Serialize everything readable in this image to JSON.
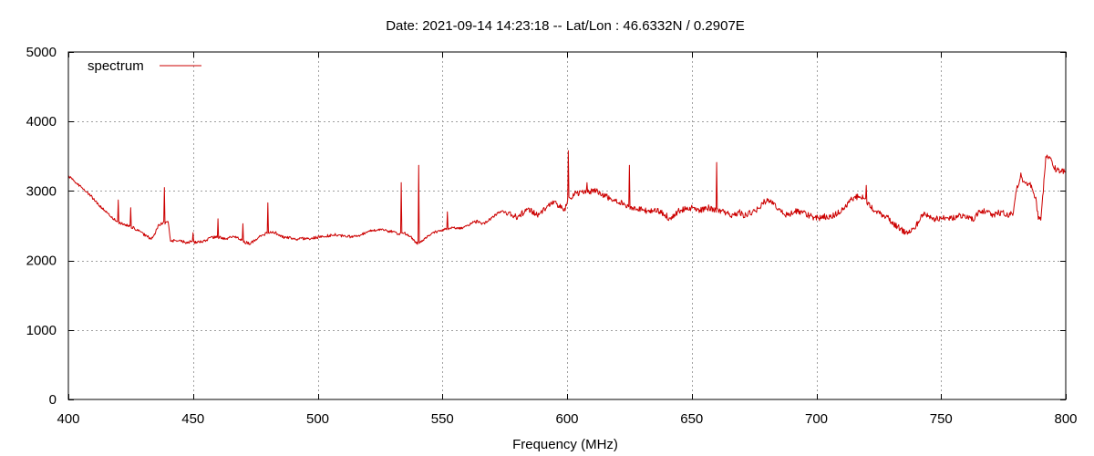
{
  "chart_data": {
    "type": "line",
    "title": "Date: 2021-09-14 14:23:18  --  Lat/Lon : 46.6332N / 0.2907E",
    "xlabel": "Frequency (MHz)",
    "ylabel": "",
    "xlim": [
      400,
      800
    ],
    "ylim": [
      0,
      5000
    ],
    "xticks": [
      400,
      450,
      500,
      550,
      600,
      650,
      700,
      750,
      800
    ],
    "yticks": [
      0,
      1000,
      2000,
      3000,
      4000,
      5000
    ],
    "grid": true,
    "legend_position": "top-left",
    "series": [
      {
        "name": "spectrum",
        "color": "#cc0000",
        "points": [
          [
            400,
            3220
          ],
          [
            403,
            3120
          ],
          [
            406,
            3030
          ],
          [
            409,
            2930
          ],
          [
            412,
            2810
          ],
          [
            415,
            2700
          ],
          [
            418,
            2600
          ],
          [
            420,
            2550
          ],
          [
            422,
            2520
          ],
          [
            424,
            2500
          ],
          [
            426,
            2470
          ],
          [
            428,
            2430
          ],
          [
            430,
            2380
          ],
          [
            432,
            2340
          ],
          [
            433,
            2300
          ],
          [
            434,
            2330
          ],
          [
            436,
            2500
          ],
          [
            437,
            2520
          ],
          [
            438,
            2540
          ],
          [
            439,
            2540
          ],
          [
            440,
            2560
          ],
          [
            441,
            2270
          ],
          [
            443,
            2290
          ],
          [
            445,
            2280
          ],
          [
            447,
            2260
          ],
          [
            449,
            2270
          ],
          [
            451,
            2260
          ],
          [
            453,
            2270
          ],
          [
            455,
            2290
          ],
          [
            457,
            2320
          ],
          [
            459,
            2340
          ],
          [
            461,
            2330
          ],
          [
            463,
            2310
          ],
          [
            465,
            2340
          ],
          [
            467,
            2340
          ],
          [
            469,
            2300
          ],
          [
            471,
            2260
          ],
          [
            473,
            2240
          ],
          [
            475,
            2300
          ],
          [
            477,
            2360
          ],
          [
            479,
            2380
          ],
          [
            481,
            2410
          ],
          [
            483,
            2400
          ],
          [
            485,
            2350
          ],
          [
            487,
            2330
          ],
          [
            489,
            2330
          ],
          [
            491,
            2300
          ],
          [
            493,
            2310
          ],
          [
            495,
            2320
          ],
          [
            497,
            2310
          ],
          [
            499,
            2330
          ],
          [
            501,
            2340
          ],
          [
            503,
            2350
          ],
          [
            505,
            2360
          ],
          [
            507,
            2370
          ],
          [
            509,
            2350
          ],
          [
            511,
            2360
          ],
          [
            513,
            2340
          ],
          [
            515,
            2350
          ],
          [
            517,
            2360
          ],
          [
            519,
            2400
          ],
          [
            521,
            2420
          ],
          [
            523,
            2440
          ],
          [
            525,
            2450
          ],
          [
            527,
            2430
          ],
          [
            529,
            2420
          ],
          [
            531,
            2420
          ],
          [
            532,
            2380
          ],
          [
            534,
            2400
          ],
          [
            536,
            2370
          ],
          [
            537,
            2350
          ],
          [
            539,
            2270
          ],
          [
            540,
            2250
          ],
          [
            542,
            2290
          ],
          [
            544,
            2350
          ],
          [
            546,
            2390
          ],
          [
            548,
            2420
          ],
          [
            550,
            2440
          ],
          [
            552,
            2450
          ],
          [
            554,
            2480
          ],
          [
            556,
            2470
          ],
          [
            558,
            2460
          ],
          [
            560,
            2500
          ],
          [
            562,
            2540
          ],
          [
            564,
            2560
          ],
          [
            566,
            2520
          ],
          [
            568,
            2560
          ],
          [
            570,
            2620
          ],
          [
            572,
            2680
          ],
          [
            574,
            2710
          ],
          [
            576,
            2690
          ],
          [
            578,
            2650
          ],
          [
            580,
            2620
          ],
          [
            582,
            2680
          ],
          [
            584,
            2720
          ],
          [
            586,
            2710
          ],
          [
            588,
            2660
          ],
          [
            590,
            2700
          ],
          [
            592,
            2780
          ],
          [
            594,
            2830
          ],
          [
            596,
            2810
          ],
          [
            598,
            2740
          ],
          [
            599,
            2720
          ],
          [
            601,
            2900
          ],
          [
            603,
            2960
          ],
          [
            605,
            2960
          ],
          [
            607,
            2980
          ],
          [
            609,
            2990
          ],
          [
            611,
            3000
          ],
          [
            613,
            2980
          ],
          [
            615,
            2930
          ],
          [
            617,
            2900
          ],
          [
            619,
            2870
          ],
          [
            621,
            2840
          ],
          [
            623,
            2800
          ],
          [
            625,
            2780
          ],
          [
            627,
            2760
          ],
          [
            629,
            2740
          ],
          [
            631,
            2720
          ],
          [
            633,
            2700
          ],
          [
            635,
            2720
          ],
          [
            637,
            2700
          ],
          [
            639,
            2680
          ],
          [
            641,
            2600
          ],
          [
            643,
            2640
          ],
          [
            645,
            2720
          ],
          [
            647,
            2740
          ],
          [
            649,
            2760
          ],
          [
            651,
            2750
          ],
          [
            653,
            2720
          ],
          [
            655,
            2740
          ],
          [
            657,
            2760
          ],
          [
            659,
            2720
          ],
          [
            661,
            2720
          ],
          [
            663,
            2690
          ],
          [
            665,
            2660
          ],
          [
            667,
            2650
          ],
          [
            669,
            2700
          ],
          [
            671,
            2650
          ],
          [
            673,
            2680
          ],
          [
            675,
            2700
          ],
          [
            677,
            2760
          ],
          [
            679,
            2840
          ],
          [
            681,
            2870
          ],
          [
            683,
            2800
          ],
          [
            685,
            2750
          ],
          [
            687,
            2680
          ],
          [
            689,
            2640
          ],
          [
            691,
            2720
          ],
          [
            693,
            2700
          ],
          [
            695,
            2680
          ],
          [
            697,
            2650
          ],
          [
            699,
            2620
          ],
          [
            701,
            2610
          ],
          [
            703,
            2640
          ],
          [
            705,
            2610
          ],
          [
            707,
            2650
          ],
          [
            709,
            2700
          ],
          [
            711,
            2760
          ],
          [
            713,
            2840
          ],
          [
            715,
            2900
          ],
          [
            717,
            2920
          ],
          [
            719,
            2920
          ],
          [
            721,
            2800
          ],
          [
            723,
            2730
          ],
          [
            725,
            2680
          ],
          [
            727,
            2640
          ],
          [
            729,
            2600
          ],
          [
            731,
            2520
          ],
          [
            733,
            2480
          ],
          [
            735,
            2420
          ],
          [
            737,
            2400
          ],
          [
            739,
            2460
          ],
          [
            741,
            2560
          ],
          [
            743,
            2680
          ],
          [
            745,
            2640
          ],
          [
            747,
            2600
          ],
          [
            749,
            2600
          ],
          [
            751,
            2620
          ],
          [
            753,
            2600
          ],
          [
            755,
            2610
          ],
          [
            757,
            2640
          ],
          [
            759,
            2650
          ],
          [
            761,
            2610
          ],
          [
            763,
            2600
          ],
          [
            765,
            2680
          ],
          [
            767,
            2720
          ],
          [
            769,
            2700
          ],
          [
            771,
            2640
          ],
          [
            773,
            2690
          ],
          [
            775,
            2680
          ],
          [
            777,
            2660
          ],
          [
            779,
            2670
          ],
          [
            780,
            2990
          ],
          [
            782,
            3180
          ],
          [
            784,
            3120
          ],
          [
            786,
            3080
          ],
          [
            788,
            2880
          ],
          [
            789,
            2620
          ],
          [
            790,
            2600
          ],
          [
            791,
            3000
          ],
          [
            792,
            3500
          ],
          [
            794,
            3470
          ],
          [
            796,
            3310
          ],
          [
            798,
            3280
          ],
          [
            800,
            3300
          ]
        ],
        "spikes": [
          [
            420,
            2870
          ],
          [
            425,
            2760
          ],
          [
            438.5,
            3050
          ],
          [
            450,
            2400
          ],
          [
            460,
            2600
          ],
          [
            470,
            2530
          ],
          [
            480,
            2830
          ],
          [
            533.5,
            3120
          ],
          [
            540.5,
            3370
          ],
          [
            552,
            2700
          ],
          [
            600.5,
            3580
          ],
          [
            608,
            3120
          ],
          [
            625,
            3370
          ],
          [
            660,
            3410
          ],
          [
            720,
            3080
          ],
          [
            782,
            3260
          ]
        ]
      }
    ]
  }
}
